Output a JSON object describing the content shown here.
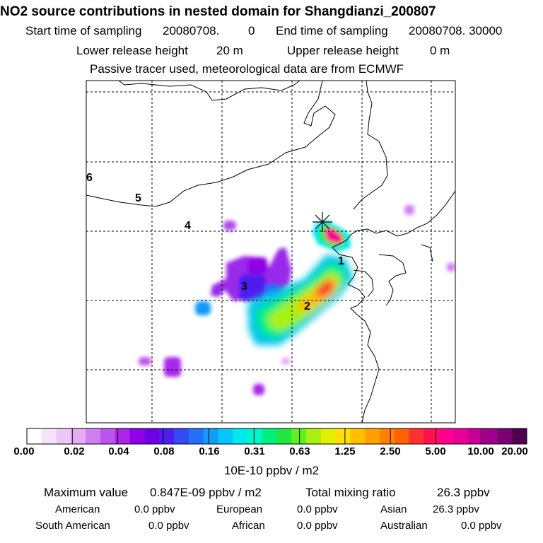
{
  "header": {
    "title": "NO2 source contributions in nested domain for Shangdianzi_200807",
    "start_label": "Start time of sampling",
    "start_value": "20080708.",
    "start_time": "0",
    "end_label": "End time of sampling",
    "end_value": "20080708. 30000",
    "lower_label": "Lower release height",
    "lower_value": "20 m",
    "upper_label": "Upper release height",
    "upper_value": "0 m",
    "note": "Passive tracer used, meteorological data are from ECMWF"
  },
  "map": {
    "region_labels": [
      "1",
      "2",
      "3",
      "4",
      "5",
      "6"
    ]
  },
  "colorbar": {
    "ticks": [
      "0.00",
      "0.02",
      "0.04",
      "0.08",
      "0.16",
      "0.31",
      "0.63",
      "1.25",
      "2.50",
      "5.00",
      "10.00",
      "20.00"
    ],
    "unit": "10E-10 ppbv / m2",
    "colors": [
      "#ffffff",
      "#f6e2fb",
      "#ecc7f7",
      "#e3acf4",
      "#cf7ff0",
      "#bd52ec",
      "#a925e9",
      "#8f00e6",
      "#6d00e6",
      "#4f1df0",
      "#3548f5",
      "#2070f8",
      "#0f9bfa",
      "#05c6fb",
      "#00e8f0",
      "#00f5c8",
      "#00f07a",
      "#20e840",
      "#5ef020",
      "#a8f010",
      "#e0f000",
      "#ffe000",
      "#ffc000",
      "#ffa000",
      "#ff8000",
      "#ff6000",
      "#ff3030",
      "#ff1050",
      "#ff0090",
      "#e80098",
      "#c8009a",
      "#a0008c",
      "#780070",
      "#500050"
    ]
  },
  "footer": {
    "max_label": "Maximum value",
    "max_value": "0.847E-09 ppbv / m2",
    "total_label": "Total mixing ratio",
    "total_value": "26.3 ppbv",
    "regions": [
      {
        "name": "American",
        "value": "0.0 ppbv"
      },
      {
        "name": "European",
        "value": "0.0 ppbv"
      },
      {
        "name": "Asian",
        "value": "26.3 ppbv"
      },
      {
        "name": "South American",
        "value": "0.0 ppbv"
      },
      {
        "name": "African",
        "value": "0.0 ppbv"
      },
      {
        "name": "Australian",
        "value": "0.0 ppbv"
      }
    ]
  }
}
